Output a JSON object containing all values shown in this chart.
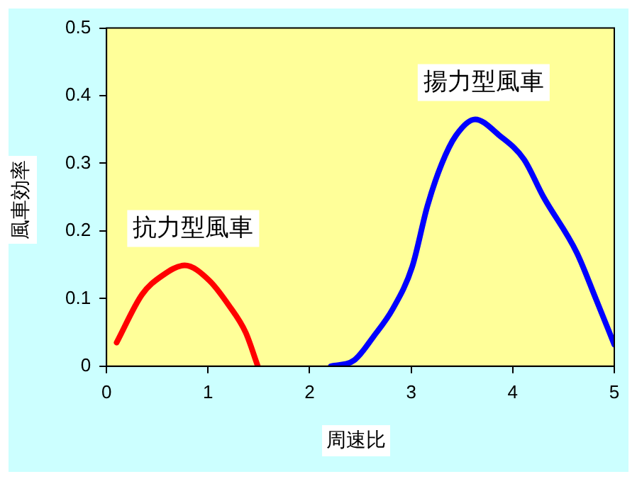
{
  "chart_data": {
    "type": "line",
    "xlabel": "周速比",
    "ylabel": "風車効率",
    "xlim": [
      0,
      5
    ],
    "xticks": [
      0,
      1,
      2,
      3,
      4,
      5
    ],
    "ylim": [
      0,
      0.5
    ],
    "yticks": [
      0,
      0.1,
      0.2,
      0.3,
      0.4,
      0.5
    ],
    "grid": false,
    "legend": false,
    "marker": "none",
    "line_style": "solid",
    "series": [
      {
        "name": "抗力型風車",
        "color": "#ff0000",
        "x": [
          0.1,
          0.35,
          0.54,
          0.77,
          1.01,
          1.2,
          1.37,
          1.49
        ],
        "values": [
          0.035,
          0.106,
          0.133,
          0.149,
          0.127,
          0.091,
          0.05,
          0
        ]
      },
      {
        "name": "揚力型風車",
        "color": "#0000ff",
        "x": [
          2.21,
          2.44,
          2.63,
          2.82,
          3.01,
          3.16,
          3.3,
          3.44,
          3.63,
          3.87,
          4.11,
          4.3,
          4.63,
          4.82,
          5
        ],
        "values": [
          0,
          0.009,
          0.044,
          0.085,
          0.147,
          0.237,
          0.299,
          0.341,
          0.365,
          0.341,
          0.306,
          0.251,
          0.168,
          0.099,
          0.032
        ]
      }
    ]
  }
}
